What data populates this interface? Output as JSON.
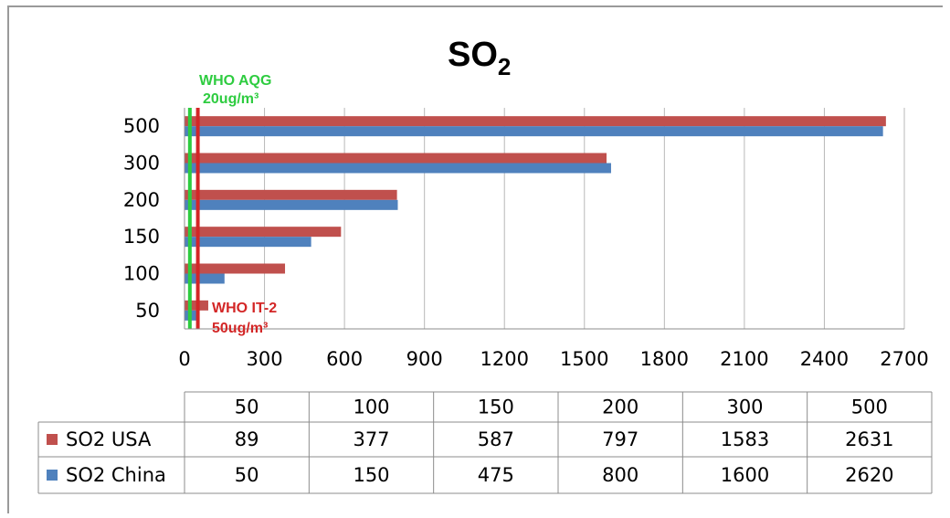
{
  "chart_data": {
    "type": "bar",
    "orientation": "horizontal",
    "title_main": "SO",
    "title_subscript": "2",
    "categories": [
      "50",
      "100",
      "150",
      "200",
      "300",
      "500"
    ],
    "series": [
      {
        "name": "SO2 USA",
        "color": "#c0504d",
        "values": [
          89,
          377,
          587,
          797,
          1583,
          2631
        ]
      },
      {
        "name": "SO2 China",
        "color": "#4f81bd",
        "values": [
          50,
          150,
          475,
          800,
          1600,
          2620
        ]
      }
    ],
    "xlim": [
      0,
      2700
    ],
    "x_ticks": [
      "0",
      "300",
      "600",
      "900",
      "1200",
      "1500",
      "1800",
      "2100",
      "2400",
      "2700"
    ],
    "grid": "vertical",
    "reference_lines": [
      {
        "label_line1": "WHO AQG",
        "label_line2": "20ug/m³",
        "value": 20,
        "color": "#2ecc40"
      },
      {
        "label_line1": "WHO IT-2",
        "label_line2": "50ug/m³",
        "value": 50,
        "color": "#d32626"
      }
    ],
    "data_table": true
  }
}
